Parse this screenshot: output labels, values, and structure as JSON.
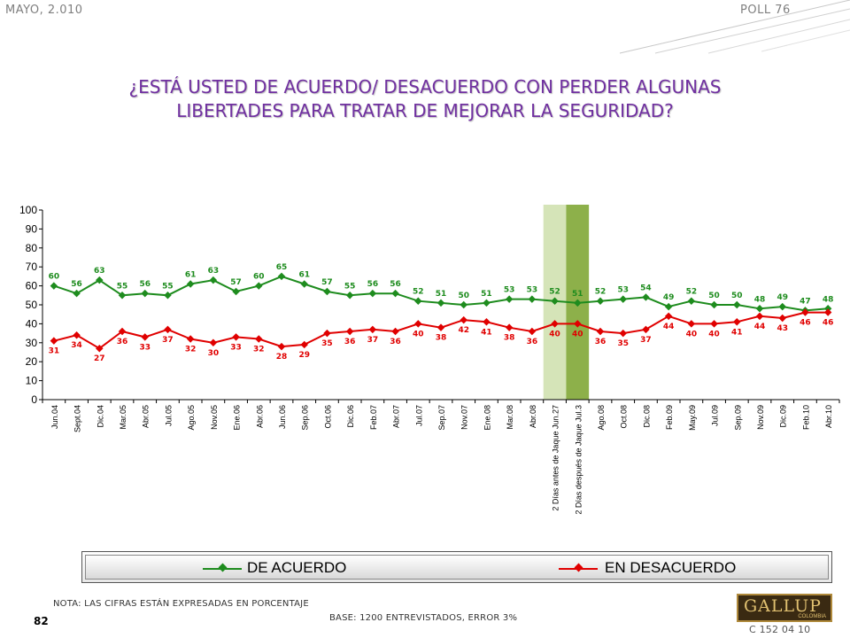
{
  "header": {
    "left": "MAYO, 2.010",
    "right": "POLL 76"
  },
  "title_lines": [
    "¿ESTÁ USTED DE ACUERDO/ DESACUERDO CON PERDER ALGUNAS",
    "LIBERTADES PARA TRATAR DE MEJORAR LA SEGURIDAD?"
  ],
  "footer": {
    "note": "NOTA: LAS CIFRAS ESTÁN EXPRESADAS EN PORCENTAJE",
    "base": "BASE: 1200 ENTREVISTADOS, ERROR 3%",
    "page_number": "82",
    "code": "C 152 04 10",
    "logo_text": "GALLUP",
    "logo_sub": "COLOMBIA"
  },
  "colors": {
    "agree": "#1e8c1e",
    "disagree": "#e00000",
    "title": "#7030a0",
    "band_light": "#d5e4b8",
    "band_dark": "#8db04a"
  },
  "chart_data": {
    "type": "line",
    "title": "",
    "xlabel": "",
    "ylabel": "",
    "ylim": [
      0,
      100
    ],
    "yticks": [
      0,
      10,
      20,
      30,
      40,
      50,
      60,
      70,
      80,
      90,
      100
    ],
    "legend": "bottom",
    "categories": [
      "Jun.04",
      "Sept.04",
      "Dic.04",
      "Mar.05",
      "Abr.05",
      "Jul.05",
      "Ago.05",
      "Nov.05",
      "Ene.06",
      "Abr.06",
      "Jun.06",
      "Sep.06",
      "Oct.06",
      "Dic.06",
      "Feb.07",
      "Abr.07",
      "Jul.07",
      "Sep.07",
      "Nov.07",
      "Ene.08",
      "Mar.08",
      "Abr.08",
      "2 Días antes de Jaque Jun.27",
      "2 Días después de Jaque Jul.3",
      "Ago.08",
      "Oct.08",
      "Dic.08",
      "Feb.09",
      "May.09",
      "Jul.09",
      "Sep.09",
      "Nov.09",
      "Dic.09",
      "Feb.10",
      "Abr.10"
    ],
    "highlight_categories": [
      "2 Días antes de Jaque Jun.27",
      "2 Días después de Jaque Jul.3"
    ],
    "series": [
      {
        "name": "DE ACUERDO",
        "values": [
          60,
          56,
          63,
          55,
          56,
          55,
          61,
          63,
          57,
          60,
          65,
          61,
          57,
          55,
          56,
          56,
          52,
          51,
          50,
          51,
          53,
          53,
          52,
          51,
          52,
          53,
          54,
          49,
          52,
          50,
          50,
          48,
          49,
          47,
          48
        ]
      },
      {
        "name": "EN DESACUERDO",
        "values": [
          31,
          34,
          27,
          36,
          33,
          37,
          32,
          30,
          33,
          32,
          28,
          29,
          35,
          36,
          37,
          36,
          40,
          38,
          42,
          41,
          38,
          36,
          40,
          40,
          36,
          35,
          37,
          44,
          40,
          40,
          41,
          44,
          43,
          46,
          46
        ]
      }
    ]
  }
}
